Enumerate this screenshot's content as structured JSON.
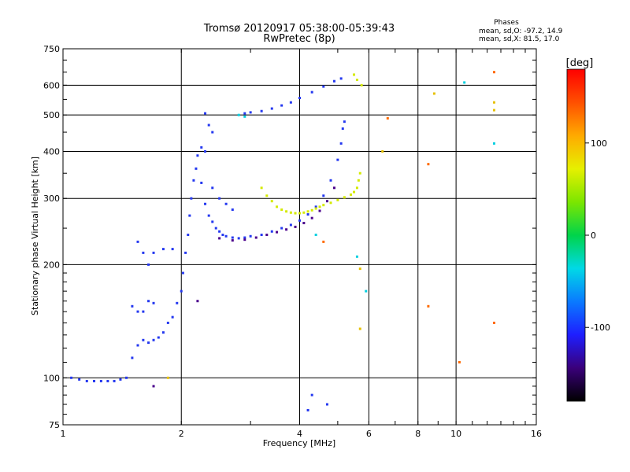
{
  "chart_data": {
    "type": "scatter",
    "title": "Tromsø 20120917 05:38:00-05:39:43",
    "subtitle": "RwPretec (8p)",
    "stats": {
      "heading": "Phases",
      "line1": "mean, sd,O: -97.2, 14.9",
      "line2": "mean, sd,X:  81.5, 17.0"
    },
    "xlabel": "Frequency [MHz]",
    "ylabel": "Stationary phase Virtual Height [km]",
    "x_scale": "log",
    "y_scale": "log",
    "xlim": [
      1,
      16
    ],
    "ylim": [
      75,
      750
    ],
    "x_ticks": [
      1,
      2,
      4,
      6,
      8,
      10,
      16
    ],
    "y_ticks": [
      75,
      100,
      200,
      300,
      400,
      500,
      600,
      750
    ],
    "grid": true,
    "colorbar": {
      "label": "[deg]",
      "range": [
        -180,
        180
      ],
      "ticks": [
        100,
        0,
        -100
      ],
      "colors": [
        "#000000",
        "#3a007a",
        "#1e1eff",
        "#0a7aff",
        "#00d9e6",
        "#00d44a",
        "#7ce600",
        "#e6f000",
        "#ffaa00",
        "#ff5000",
        "#ff0000"
      ]
    },
    "series": [
      {
        "phase": -100,
        "color": "#2438f0",
        "points": [
          [
            1.05,
            100
          ],
          [
            1.1,
            99
          ],
          [
            1.15,
            98
          ],
          [
            1.2,
            98
          ],
          [
            1.25,
            98
          ],
          [
            1.3,
            98
          ],
          [
            1.35,
            98
          ],
          [
            1.4,
            99
          ],
          [
            1.45,
            100
          ],
          [
            1.5,
            113
          ],
          [
            1.55,
            122
          ],
          [
            1.6,
            126
          ],
          [
            1.65,
            124
          ],
          [
            1.7,
            126
          ],
          [
            1.75,
            128
          ],
          [
            1.8,
            132
          ],
          [
            1.85,
            140
          ],
          [
            1.9,
            145
          ],
          [
            1.95,
            158
          ],
          [
            2.0,
            170
          ],
          [
            2.02,
            190
          ],
          [
            2.05,
            215
          ],
          [
            2.08,
            240
          ],
          [
            2.1,
            270
          ],
          [
            2.12,
            300
          ],
          [
            2.15,
            335
          ],
          [
            2.18,
            360
          ],
          [
            2.2,
            390
          ],
          [
            2.25,
            330
          ],
          [
            2.3,
            290
          ],
          [
            2.35,
            270
          ],
          [
            2.4,
            260
          ],
          [
            2.45,
            250
          ],
          [
            2.5,
            245
          ],
          [
            2.55,
            240
          ],
          [
            2.6,
            238
          ],
          [
            2.7,
            236
          ],
          [
            2.8,
            235
          ],
          [
            2.9,
            236
          ],
          [
            3.0,
            238
          ],
          [
            3.2,
            240
          ],
          [
            3.4,
            245
          ],
          [
            3.6,
            250
          ],
          [
            3.8,
            255
          ],
          [
            4.0,
            262
          ],
          [
            4.2,
            272
          ],
          [
            4.4,
            285
          ],
          [
            4.6,
            305
          ],
          [
            4.8,
            335
          ],
          [
            5.0,
            380
          ],
          [
            5.1,
            420
          ],
          [
            5.15,
            460
          ],
          [
            5.2,
            480
          ],
          [
            2.9,
            505
          ],
          [
            3.0,
            508
          ],
          [
            3.2,
            512
          ],
          [
            3.4,
            520
          ],
          [
            3.6,
            530
          ],
          [
            3.8,
            540
          ],
          [
            4.0,
            555
          ],
          [
            4.3,
            575
          ],
          [
            4.6,
            595
          ],
          [
            4.9,
            615
          ],
          [
            5.1,
            625
          ],
          [
            2.3,
            505
          ],
          [
            2.35,
            470
          ],
          [
            2.4,
            450
          ],
          [
            2.25,
            410
          ],
          [
            2.3,
            400
          ],
          [
            1.55,
            230
          ],
          [
            1.6,
            215
          ],
          [
            1.7,
            215
          ],
          [
            1.65,
            200
          ],
          [
            1.8,
            220
          ],
          [
            1.9,
            220
          ],
          [
            1.5,
            155
          ],
          [
            1.55,
            150
          ],
          [
            1.6,
            150
          ],
          [
            1.65,
            160
          ],
          [
            1.7,
            158
          ],
          [
            2.6,
            290
          ],
          [
            2.7,
            280
          ],
          [
            2.5,
            300
          ],
          [
            2.4,
            320
          ],
          [
            4.3,
            90
          ],
          [
            4.7,
            85
          ],
          [
            4.2,
            82
          ]
        ]
      },
      {
        "phase": -150,
        "color": "#4a008c",
        "points": [
          [
            2.5,
            235
          ],
          [
            2.7,
            232
          ],
          [
            2.9,
            233
          ],
          [
            3.1,
            236
          ],
          [
            3.3,
            240
          ],
          [
            3.5,
            244
          ],
          [
            3.7,
            248
          ],
          [
            3.9,
            252
          ],
          [
            4.1,
            258
          ],
          [
            4.3,
            266
          ],
          [
            4.5,
            278
          ],
          [
            4.7,
            295
          ],
          [
            4.9,
            320
          ],
          [
            1.7,
            95
          ],
          [
            2.2,
            160
          ]
        ]
      },
      {
        "phase": 110,
        "color": "#d4ea00",
        "points": [
          [
            3.2,
            320
          ],
          [
            3.3,
            305
          ],
          [
            3.4,
            295
          ],
          [
            3.5,
            285
          ],
          [
            3.6,
            280
          ],
          [
            3.7,
            277
          ],
          [
            3.8,
            275
          ],
          [
            3.9,
            274
          ],
          [
            4.0,
            274
          ],
          [
            4.1,
            275
          ],
          [
            4.2,
            277
          ],
          [
            4.3,
            279
          ],
          [
            4.4,
            282
          ],
          [
            4.5,
            285
          ],
          [
            4.6,
            288
          ],
          [
            4.8,
            292
          ],
          [
            5.0,
            297
          ],
          [
            5.2,
            302
          ],
          [
            5.4,
            307
          ],
          [
            5.5,
            312
          ],
          [
            5.6,
            320
          ],
          [
            5.65,
            335
          ],
          [
            5.7,
            350
          ],
          [
            5.5,
            640
          ],
          [
            5.6,
            620
          ],
          [
            5.75,
            600
          ]
        ]
      },
      {
        "phase": 20,
        "color": "#00cfe0",
        "points": [
          [
            2.8,
            500
          ],
          [
            2.9,
            495
          ],
          [
            5.6,
            210
          ],
          [
            5.9,
            170
          ],
          [
            4.4,
            240
          ],
          [
            10.5,
            610
          ],
          [
            12.5,
            420
          ]
        ]
      },
      {
        "phase": 150,
        "color": "#ff6a00",
        "points": [
          [
            6.7,
            490
          ],
          [
            8.5,
            370
          ],
          [
            8.5,
            155
          ],
          [
            12.5,
            650
          ],
          [
            12.5,
            140
          ],
          [
            10.2,
            110
          ],
          [
            4.6,
            230
          ]
        ]
      },
      {
        "phase": 90,
        "color": "#e6c000",
        "points": [
          [
            6.5,
            400
          ],
          [
            8.8,
            570
          ],
          [
            12.5,
            540
          ],
          [
            12.5,
            515
          ],
          [
            5.7,
            195
          ],
          [
            5.7,
            135
          ],
          [
            1.85,
            100
          ]
        ]
      }
    ]
  }
}
